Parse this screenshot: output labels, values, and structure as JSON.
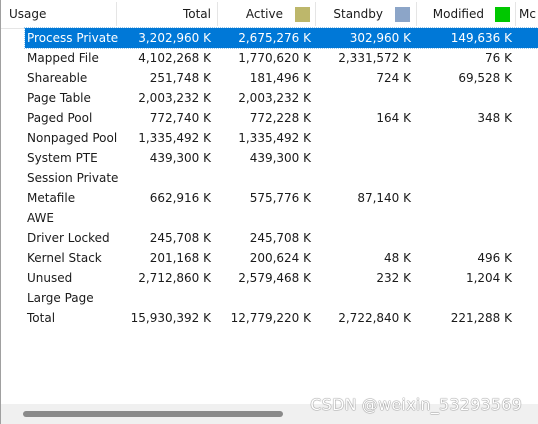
{
  "columns": {
    "usage": "Usage",
    "total": "Total",
    "active": "Active",
    "standby": "Standby",
    "modified": "Modified",
    "mc": "Mc"
  },
  "colors": {
    "active_swatch": "#bdb76b",
    "standby_swatch": "#8ca5c8",
    "modified_swatch": "#00c800",
    "selection": "#0078d7"
  },
  "rows": [
    {
      "usage": "Process Private",
      "total": "3,202,960 K",
      "active": "2,675,276 K",
      "standby": "302,960 K",
      "modified": "149,636 K"
    },
    {
      "usage": "Mapped File",
      "total": "4,102,268 K",
      "active": "1,770,620 K",
      "standby": "2,331,572 K",
      "modified": "76 K"
    },
    {
      "usage": "Shareable",
      "total": "251,748 K",
      "active": "181,496 K",
      "standby": "724 K",
      "modified": "69,528 K"
    },
    {
      "usage": "Page Table",
      "total": "2,003,232 K",
      "active": "2,003,232 K",
      "standby": "",
      "modified": ""
    },
    {
      "usage": "Paged Pool",
      "total": "772,740 K",
      "active": "772,228 K",
      "standby": "164 K",
      "modified": "348 K"
    },
    {
      "usage": "Nonpaged Pool",
      "total": "1,335,492 K",
      "active": "1,335,492 K",
      "standby": "",
      "modified": ""
    },
    {
      "usage": "System PTE",
      "total": "439,300 K",
      "active": "439,300 K",
      "standby": "",
      "modified": ""
    },
    {
      "usage": "Session Private",
      "total": "",
      "active": "",
      "standby": "",
      "modified": ""
    },
    {
      "usage": "Metafile",
      "total": "662,916 K",
      "active": "575,776 K",
      "standby": "87,140 K",
      "modified": ""
    },
    {
      "usage": "AWE",
      "total": "",
      "active": "",
      "standby": "",
      "modified": ""
    },
    {
      "usage": "Driver Locked",
      "total": "245,708 K",
      "active": "245,708 K",
      "standby": "",
      "modified": ""
    },
    {
      "usage": "Kernel Stack",
      "total": "201,168 K",
      "active": "200,624 K",
      "standby": "48 K",
      "modified": "496 K"
    },
    {
      "usage": "Unused",
      "total": "2,712,860 K",
      "active": "2,579,468 K",
      "standby": "232 K",
      "modified": "1,204 K"
    },
    {
      "usage": "Large Page",
      "total": "",
      "active": "",
      "standby": "",
      "modified": ""
    },
    {
      "usage": "Total",
      "total": "15,930,392 K",
      "active": "12,779,220 K",
      "standby": "2,722,840 K",
      "modified": "221,288 K"
    }
  ],
  "watermark": "CSDN @weixin_53293569"
}
